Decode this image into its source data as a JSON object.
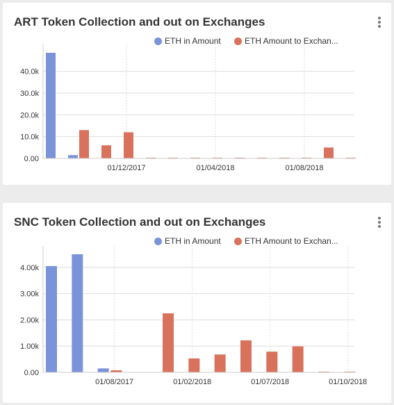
{
  "colors": {
    "eth_in": "#7b93d9",
    "eth_out": "#d9725c",
    "text": "#333333",
    "grid": "#dddddd"
  },
  "cards": [
    {
      "title": "ART Token Collection and out on Exchanges",
      "menu_icon": "more-vertical-icon",
      "legend": [
        "ETH in Amount",
        "ETH Amount to Exchan..."
      ],
      "chart_data": {
        "type": "bar",
        "series": [
          {
            "name": "ETH in Amount",
            "values": [
              48500,
              1500,
              0,
              0,
              0,
              0,
              0,
              0,
              0,
              0,
              0,
              0,
              0,
              0
            ]
          },
          {
            "name": "ETH Amount to Exchan...",
            "values": [
              0,
              13000,
              6000,
              12000,
              200,
              200,
              200,
              200,
              200,
              200,
              200,
              200,
              5000,
              200
            ]
          }
        ],
        "x_ticks": [
          {
            "label": "01/12/2017",
            "index": 3
          },
          {
            "label": "01/04/2018",
            "index": 7
          },
          {
            "label": "01/08/2018",
            "index": 11
          }
        ],
        "y_ticks": [
          "0.00",
          "10.0k",
          "20.0k",
          "30.0k",
          "40.0k"
        ],
        "y_tick_values": [
          0,
          10000,
          20000,
          30000,
          40000
        ],
        "ylim": [
          0,
          48500
        ],
        "grid": true
      }
    },
    {
      "title": "SNC Token Collection and out on Exchanges",
      "menu_icon": "more-vertical-icon",
      "legend": [
        "ETH in Amount",
        "ETH Amount to Exchan..."
      ],
      "chart_data": {
        "type": "bar",
        "series": [
          {
            "name": "ETH in Amount",
            "values": [
              4050,
              4500,
              150,
              0,
              0,
              0,
              0,
              0,
              0,
              0,
              0,
              0
            ]
          },
          {
            "name": "ETH Amount to Exchan...",
            "values": [
              0,
              0,
              80,
              0,
              2250,
              530,
              680,
              1220,
              790,
              990,
              20,
              20
            ]
          }
        ],
        "x_ticks": [
          {
            "label": "01/08/2017",
            "index": 2
          },
          {
            "label": "01/02/2018",
            "index": 5
          },
          {
            "label": "01/07/2018",
            "index": 8
          },
          {
            "label": "01/10/2018",
            "index": 11
          }
        ],
        "y_ticks": [
          "0.00",
          "1.00k",
          "2.00k",
          "3.00k",
          "4.00k"
        ],
        "y_tick_values": [
          0,
          1000,
          2000,
          3000,
          4000
        ],
        "ylim": [
          0,
          4500
        ],
        "grid": true
      }
    }
  ]
}
